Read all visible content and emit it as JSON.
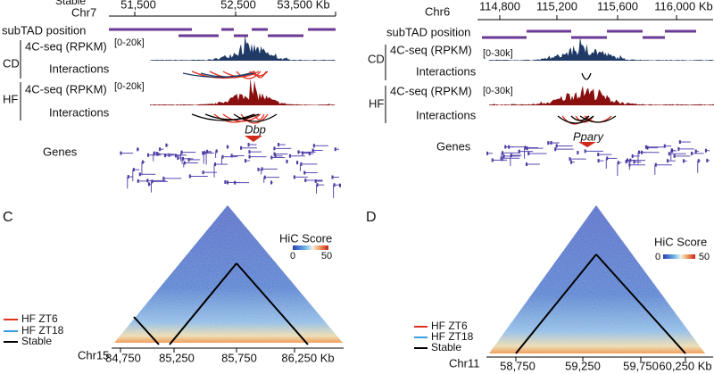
{
  "panel_a": {
    "top_label": "Stable",
    "chromosome": "Chr7",
    "axis_ticks": [
      "51,500",
      "52,500",
      "53,500 Kb"
    ],
    "subtad_label": "subTAD position",
    "cd": {
      "condition": "CD",
      "track": "4C-seq (RPKM)",
      "range": "[0-20k]",
      "interactions": "Interactions"
    },
    "hf": {
      "condition": "HF",
      "track": "4C-seq (RPKM)",
      "range": "[0-20k]",
      "interactions": "Interactions"
    },
    "gene_name": "Dbp",
    "genes_label": "Genes"
  },
  "panel_b": {
    "chromosome": "Chr6",
    "axis_ticks": [
      "114,800",
      "115,200",
      "115,600",
      "116,000 Kb"
    ],
    "subtad_label": "subTAD position",
    "cd": {
      "condition": "CD",
      "track": "4C-seq (RPKM)",
      "range": "[0-30k]",
      "interactions": "Interactions"
    },
    "hf": {
      "condition": "HF",
      "track": "4C-seq (RPKM)",
      "range": "[0-30k]",
      "interactions": "Interactions"
    },
    "gene_name": "Ppary",
    "genes_label": "Genes"
  },
  "panel_c": {
    "letter": "C",
    "colorbar_title": "HiC Score",
    "colorbar_min": "0",
    "colorbar_max": "50",
    "legend": [
      "HF ZT6",
      "HF ZT18",
      "Stable"
    ],
    "chromosome": "Chr15",
    "axis_ticks": [
      "84,750",
      "85,250",
      "85,750",
      "86,250 Kb"
    ]
  },
  "panel_d": {
    "letter": "D",
    "colorbar_title": "HiC Score",
    "colorbar_min": "0",
    "colorbar_max": "50",
    "legend": [
      "HF ZT6",
      "HF ZT18",
      "Stable"
    ],
    "chromosome": "Chr11",
    "axis_ticks": [
      "58,750",
      "59,250",
      "59,750",
      "60,250 Kb"
    ]
  }
}
